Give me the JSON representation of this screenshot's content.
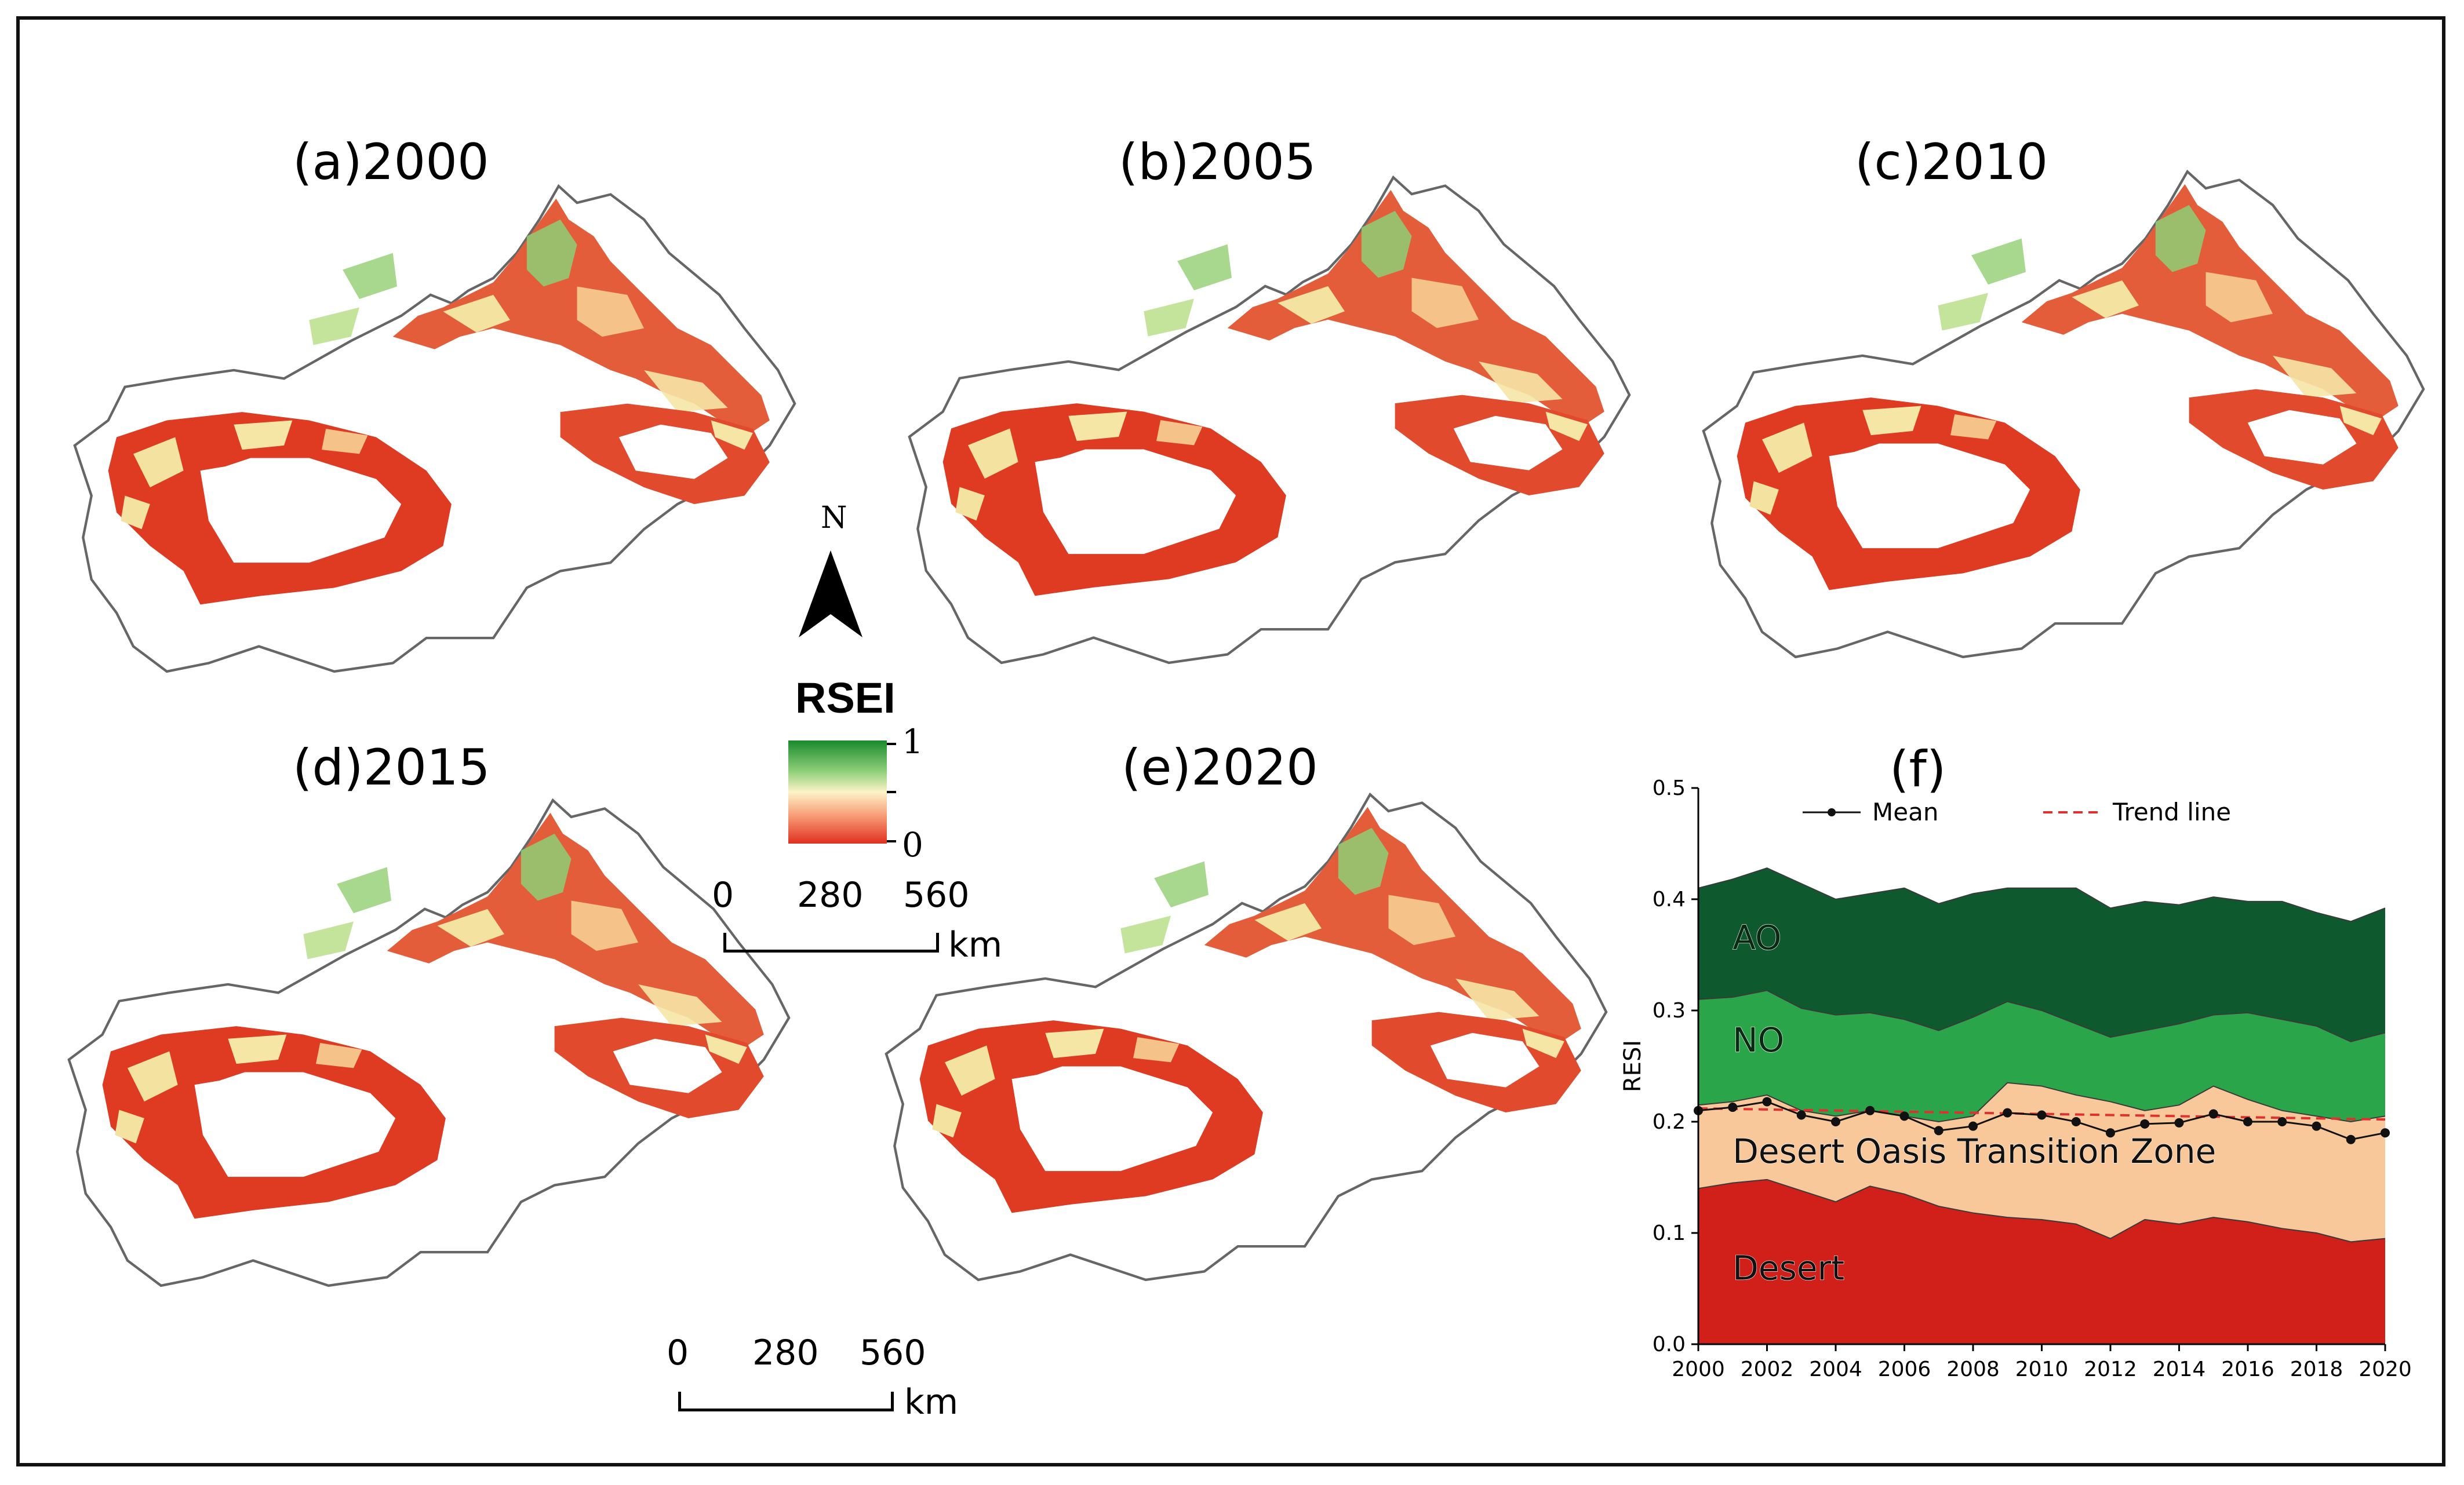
{
  "panels": {
    "a": {
      "title": "(a)2000"
    },
    "b": {
      "title": "(b)2005"
    },
    "c": {
      "title": "(c)2010"
    },
    "d": {
      "title": "(d)2015"
    },
    "e": {
      "title": "(e)2020"
    },
    "f": {
      "title": "(f)"
    }
  },
  "legend": {
    "title": "RSEI",
    "max_label": "1",
    "min_label": "0",
    "colors": [
      "#1a8a2e",
      "#8fd07a",
      "#fdf3c8",
      "#f7a07a",
      "#e03020"
    ]
  },
  "north_arrow": {
    "label": "N"
  },
  "scale_bars": [
    {
      "ticks": [
        "0",
        "280",
        "560"
      ],
      "unit": "km"
    },
    {
      "ticks": [
        "0",
        "280",
        "560"
      ],
      "unit": "km"
    }
  ],
  "map_colors": {
    "desert_red": "#df3a22",
    "mid_orange": "#f08a60",
    "light_yellow": "#f6e6a6",
    "light_green": "#a8d88e",
    "outline": "#666666"
  },
  "chart_data": {
    "type": "area",
    "title": "(f)",
    "xlabel": "",
    "ylabel": "RESI",
    "xlim": [
      2000,
      2020
    ],
    "ylim": [
      0,
      0.5
    ],
    "x": [
      2000,
      2001,
      2002,
      2003,
      2004,
      2005,
      2006,
      2007,
      2008,
      2009,
      2010,
      2011,
      2012,
      2013,
      2014,
      2015,
      2016,
      2017,
      2018,
      2019,
      2020
    ],
    "x_ticks": [
      "2000",
      "2002",
      "2004",
      "2006",
      "2008",
      "2010",
      "2012",
      "2014",
      "2016",
      "2018",
      "2020"
    ],
    "y_ticks": [
      "0.0",
      "0.1",
      "0.2",
      "0.3",
      "0.4",
      "0.5"
    ],
    "stack_tops": [
      {
        "name": "Desert",
        "color": "#d11f1a",
        "values": [
          0.14,
          0.145,
          0.148,
          0.138,
          0.128,
          0.142,
          0.135,
          0.124,
          0.118,
          0.114,
          0.112,
          0.108,
          0.095,
          0.112,
          0.108,
          0.114,
          0.11,
          0.104,
          0.1,
          0.092,
          0.095
        ]
      },
      {
        "name": "Desert Oasis Transition Zone",
        "color": "#f8c89a",
        "values": [
          0.215,
          0.218,
          0.224,
          0.21,
          0.205,
          0.21,
          0.205,
          0.2,
          0.205,
          0.235,
          0.232,
          0.224,
          0.218,
          0.21,
          0.215,
          0.232,
          0.22,
          0.21,
          0.205,
          0.2,
          0.205
        ]
      },
      {
        "name": "NO",
        "color": "#2aa54a",
        "values": [
          0.31,
          0.312,
          0.318,
          0.302,
          0.296,
          0.298,
          0.292,
          0.282,
          0.294,
          0.308,
          0.3,
          0.288,
          0.276,
          0.282,
          0.288,
          0.296,
          0.298,
          0.292,
          0.286,
          0.272,
          0.28
        ]
      },
      {
        "name": "AO",
        "color": "#0e5a2e",
        "values": [
          0.41,
          0.418,
          0.428,
          0.414,
          0.4,
          0.405,
          0.41,
          0.396,
          0.405,
          0.41,
          0.41,
          0.41,
          0.392,
          0.398,
          0.395,
          0.402,
          0.398,
          0.398,
          0.388,
          0.38,
          0.392
        ]
      }
    ],
    "series": [
      {
        "name": "Mean",
        "color": "#111111",
        "values": [
          0.21,
          0.213,
          0.218,
          0.206,
          0.2,
          0.21,
          0.205,
          0.192,
          0.196,
          0.208,
          0.206,
          0.2,
          0.19,
          0.198,
          0.199,
          0.207,
          0.2,
          0.2,
          0.196,
          0.184,
          0.19
        ]
      },
      {
        "name": "Trend line",
        "color": "#e03030",
        "values": [
          0.212,
          0.2115,
          0.211,
          0.2105,
          0.21,
          0.2095,
          0.209,
          0.2085,
          0.208,
          0.2075,
          0.207,
          0.2065,
          0.206,
          0.2055,
          0.205,
          0.2045,
          0.204,
          0.2035,
          0.203,
          0.2025,
          0.202
        ]
      }
    ],
    "annotations": [
      "AO",
      "NO",
      "Desert Oasis Transition Zone",
      "Desert"
    ],
    "legend": [
      "Mean",
      "Trend line"
    ],
    "legend_position": "top"
  }
}
